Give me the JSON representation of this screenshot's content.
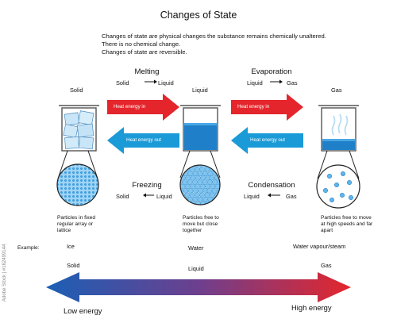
{
  "title": "Changes of State",
  "intro": [
    "Changes of state are physical changes the substance remains chemically unaltered.",
    "There is no chemical change.",
    "Changes of state are reversible."
  ],
  "states": {
    "solid": "Solid",
    "liquid": "Liquid",
    "gas": "Gas"
  },
  "processes": {
    "melting": {
      "name": "Melting",
      "from": "Solid",
      "to": "Liquid"
    },
    "evaporation": {
      "name": "Evaporation",
      "from": "Liquid",
      "to": "Gas"
    },
    "freezing": {
      "name": "Freezing",
      "from": "Solid",
      "to": "Liquid"
    },
    "condensation": {
      "name": "Condensation",
      "from": "Liquid",
      "to": "Gas"
    }
  },
  "arrows": {
    "heat_in": "Heat energy in",
    "heat_out": "Heat energy out"
  },
  "captions": {
    "solid": [
      "Particles in fixed",
      "regular array or",
      "lattice"
    ],
    "liquid": [
      "Particles free to",
      "move but close",
      "together"
    ],
    "gas": [
      "Particles free to move",
      "at high speeds and far",
      "apart"
    ]
  },
  "example": {
    "label": "Example:",
    "ice": "Ice",
    "water": "Water",
    "steam": "Water vapour/steam"
  },
  "scale": {
    "solid": "Solid",
    "liquid": "Liquid",
    "gas": "Gas",
    "low": "Low energy",
    "high": "High energy"
  },
  "side_text": "Adobe Stock | #162499144",
  "colors": {
    "red": "#e4262c",
    "blue": "#1a9ad6",
    "liquid": "#1f7fc8",
    "particle": "#7fc4ef",
    "scale_left": "#1b5fb5",
    "scale_right": "#e4262c"
  }
}
